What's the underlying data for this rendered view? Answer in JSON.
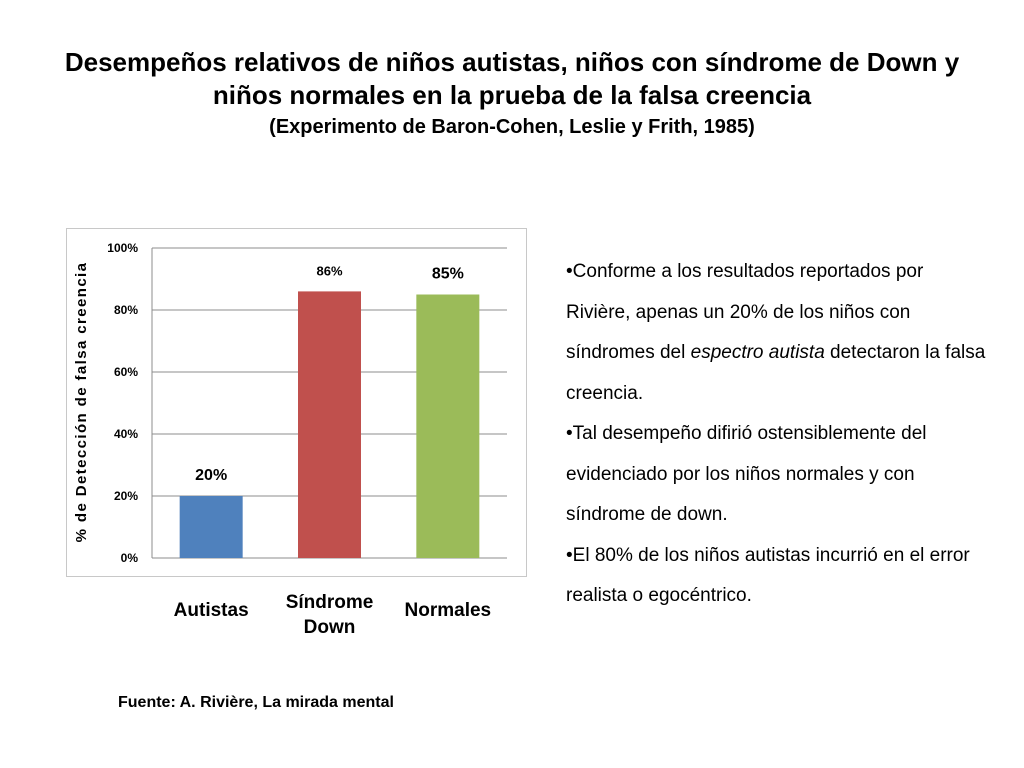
{
  "slide": {
    "title_line1": "Desempeños relativos de niños autistas, niños con síndrome de Down y",
    "title_line2": "niños normales en la prueba de la falsa creencia",
    "subtitle": "(Experimento de Baron-Cohen, Leslie y Frith, 1985)",
    "source": "Fuente: A. Rivière, La mirada mental"
  },
  "bullets": [
    {
      "marker": "•",
      "parts": [
        {
          "text": "Conforme a los resultados reportados por Rivière, apenas un 20% de los niños con síndromes del ",
          "italic": false
        },
        {
          "text": "espectro autista",
          "italic": true
        },
        {
          "text": " detectaron la falsa creencia.",
          "italic": false
        }
      ]
    },
    {
      "marker": "•",
      "parts": [
        {
          "text": "Tal desempeño difirió ostensiblemente del evidenciado por los niños normales y con síndrome de down.",
          "italic": false
        }
      ]
    },
    {
      "marker": "•",
      "parts": [
        {
          "text": "El 80% de los niños autistas incurrió en el error realista o egocéntrico.",
          "italic": false
        }
      ]
    }
  ],
  "chart_data": {
    "type": "bar",
    "title": "",
    "categories": [
      "Autistas",
      "Síndrome Down",
      "Normales"
    ],
    "category_lines": [
      [
        "Autistas"
      ],
      [
        "Síndrome",
        "Down"
      ],
      [
        "Normales"
      ]
    ],
    "values": [
      0.2,
      0.86,
      0.85
    ],
    "value_labels": [
      "20%",
      "86%",
      "85%"
    ],
    "bar_colors": [
      "#4f81bd",
      "#c0504d",
      "#9bbb59"
    ],
    "xlabel": "",
    "ylabel": "% de Detección de falsa creencia",
    "ylim": [
      0,
      1
    ],
    "yticks": [
      0,
      0.2,
      0.4,
      0.6,
      0.8,
      1.0
    ],
    "ytick_labels": [
      "0%",
      "20%",
      "40%",
      "60%",
      "80%",
      "100%"
    ],
    "grid": true,
    "legend": "none"
  }
}
